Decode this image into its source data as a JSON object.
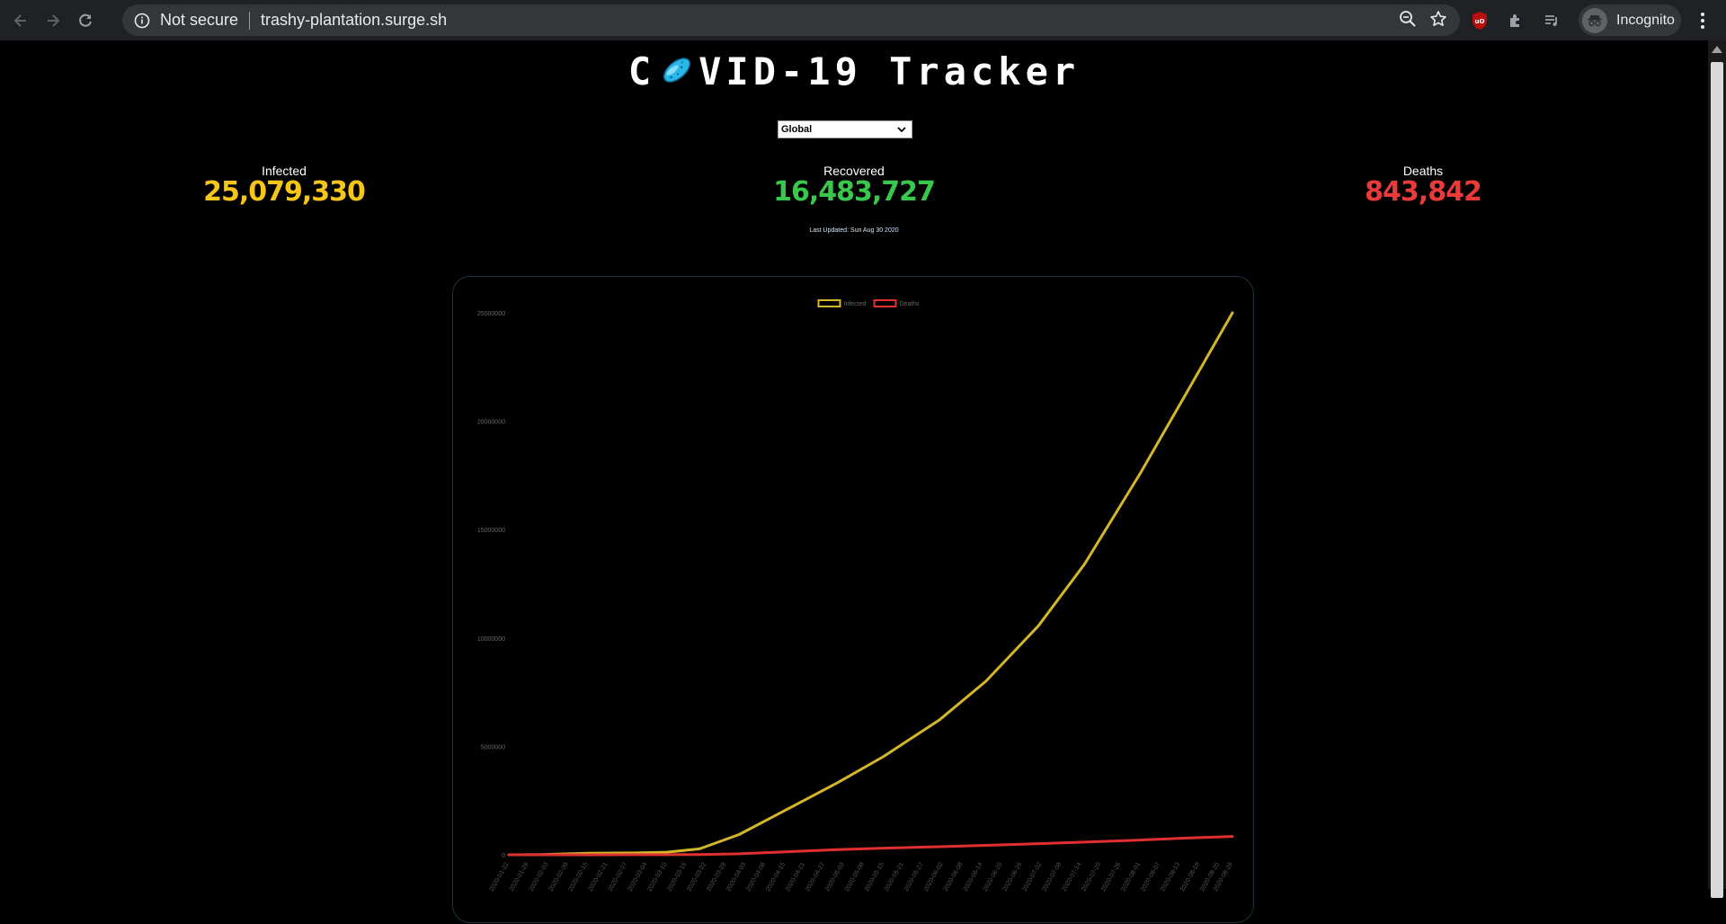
{
  "browser": {
    "security_label": "Not secure",
    "url": "trashy-plantation.surge.sh",
    "profile_label": "Incognito",
    "icons": [
      "back-icon",
      "forward-icon",
      "reload-icon",
      "info-icon",
      "zoom-icon",
      "star-icon",
      "ublock-icon",
      "extensions-icon",
      "media-icon",
      "incognito-icon",
      "menu-icon"
    ]
  },
  "page": {
    "title_before": "C",
    "title_after": "VID-19 Tracker",
    "country_selected": "Global",
    "stats": {
      "infected": {
        "label": "Infected",
        "value": "25,079,330",
        "color": "#f5c518"
      },
      "recovered": {
        "label": "Recovered",
        "value": "16,483,727",
        "color": "#39c84b"
      },
      "deaths": {
        "label": "Deaths",
        "value": "843,842",
        "color": "#ea3a3a"
      }
    },
    "last_updated": "Last Updated: Sun Aug 30 2020"
  },
  "chart_data": {
    "type": "line",
    "legend": [
      "Infected",
      "Deaths"
    ],
    "legend_position": "top-center",
    "y_ticks": [
      "0",
      "5000000",
      "10000000",
      "15000000",
      "20000000",
      "25000000"
    ],
    "ylim": [
      0,
      25000000
    ],
    "x_ticks": [
      "2020-01-22",
      "2020-01-28",
      "2020-02-03",
      "2020-02-09",
      "2020-02-15",
      "2020-02-21",
      "2020-02-27",
      "2020-03-04",
      "2020-03-10",
      "2020-03-16",
      "2020-03-22",
      "2020-03-28",
      "2020-04-03",
      "2020-04-09",
      "2020-04-15",
      "2020-04-21",
      "2020-04-27",
      "2020-05-03",
      "2020-05-09",
      "2020-05-15",
      "2020-05-21",
      "2020-05-27",
      "2020-06-02",
      "2020-06-08",
      "2020-06-14",
      "2020-06-20",
      "2020-06-26",
      "2020-07-02",
      "2020-07-08",
      "2020-07-14",
      "2020-07-20",
      "2020-07-26",
      "2020-08-01",
      "2020-08-07",
      "2020-08-13",
      "2020-08-19",
      "2020-08-25",
      "2020-08-29"
    ],
    "series": [
      {
        "name": "Infected",
        "color": "#d4b62a",
        "x": [
          "2020-01-22",
          "2020-02-01",
          "2020-02-15",
          "2020-03-01",
          "2020-03-10",
          "2020-03-20",
          "2020-04-01",
          "2020-04-15",
          "2020-05-01",
          "2020-05-15",
          "2020-06-01",
          "2020-06-15",
          "2020-07-01",
          "2020-07-15",
          "2020-08-01",
          "2020-08-15",
          "2020-08-29"
        ],
        "values": [
          600,
          12000,
          69000,
          88000,
          119000,
          272000,
          932000,
          2050000,
          3330000,
          4540000,
          6230000,
          8000000,
          10560000,
          13400000,
          17600000,
          21300000,
          25000000
        ]
      },
      {
        "name": "Deaths",
        "color": "#e03030",
        "x": [
          "2020-01-22",
          "2020-02-01",
          "2020-02-15",
          "2020-03-01",
          "2020-03-10",
          "2020-03-20",
          "2020-04-01",
          "2020-04-15",
          "2020-05-01",
          "2020-05-15",
          "2020-06-01",
          "2020-06-15",
          "2020-07-01",
          "2020-07-15",
          "2020-08-01",
          "2020-08-15",
          "2020-08-29"
        ],
        "values": [
          17,
          259,
          1526,
          3000,
          4300,
          11000,
          47000,
          137000,
          239000,
          308000,
          375000,
          435000,
          516000,
          585000,
          682000,
          770000,
          843842
        ]
      }
    ]
  }
}
